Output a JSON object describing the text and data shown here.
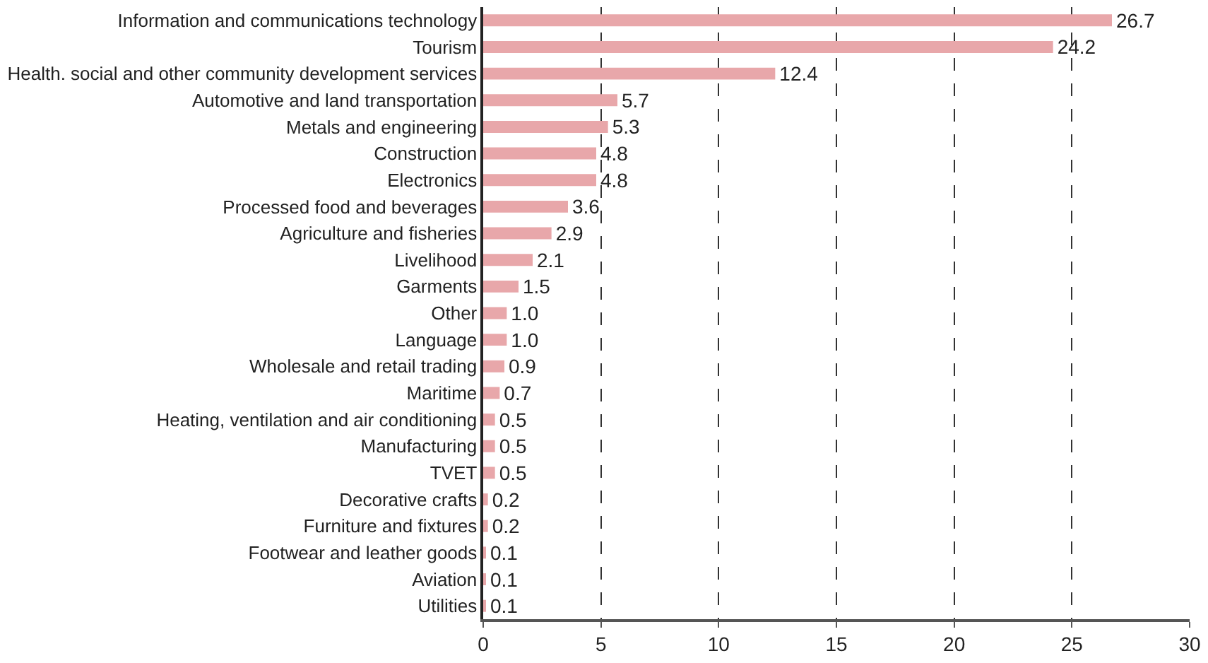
{
  "chart_data": {
    "type": "bar",
    "orientation": "horizontal",
    "categories": [
      "Information and communications technology",
      "Tourism",
      "Health. social and other community development services",
      "Automotive and land transportation",
      "Metals and engineering",
      "Construction",
      "Electronics",
      "Processed food and beverages",
      "Agriculture and fisheries",
      "Livelihood",
      "Garments",
      "Other",
      "Language",
      "Wholesale and retail trading",
      "Maritime",
      "Heating, ventilation and air conditioning",
      "Manufacturing",
      "TVET",
      "Decorative crafts",
      "Furniture and fixtures",
      "Footwear and leather goods",
      "Aviation",
      "Utilities"
    ],
    "values": [
      26.7,
      24.2,
      12.4,
      5.7,
      5.3,
      4.8,
      4.8,
      3.6,
      2.9,
      2.1,
      1.5,
      1.0,
      1.0,
      0.9,
      0.7,
      0.5,
      0.5,
      0.5,
      0.2,
      0.2,
      0.1,
      0.1,
      0.1
    ],
    "value_labels": [
      "26.7",
      "24.2",
      "12.4",
      "5.7",
      "5.3",
      "4.8",
      "4.8",
      "3.6",
      "2.9",
      "2.1",
      "1.5",
      "1.0",
      "1.0",
      "0.9",
      "0.7",
      "0.5",
      "0.5",
      "0.5",
      "0.2",
      "0.2",
      "0.1",
      "0.1",
      "0.1"
    ],
    "color": "#e8a7aa",
    "xlim": [
      0,
      30
    ],
    "xticks": [
      0,
      5,
      10,
      15,
      20,
      25,
      30
    ],
    "grid": "x",
    "line_style": "dashed"
  }
}
